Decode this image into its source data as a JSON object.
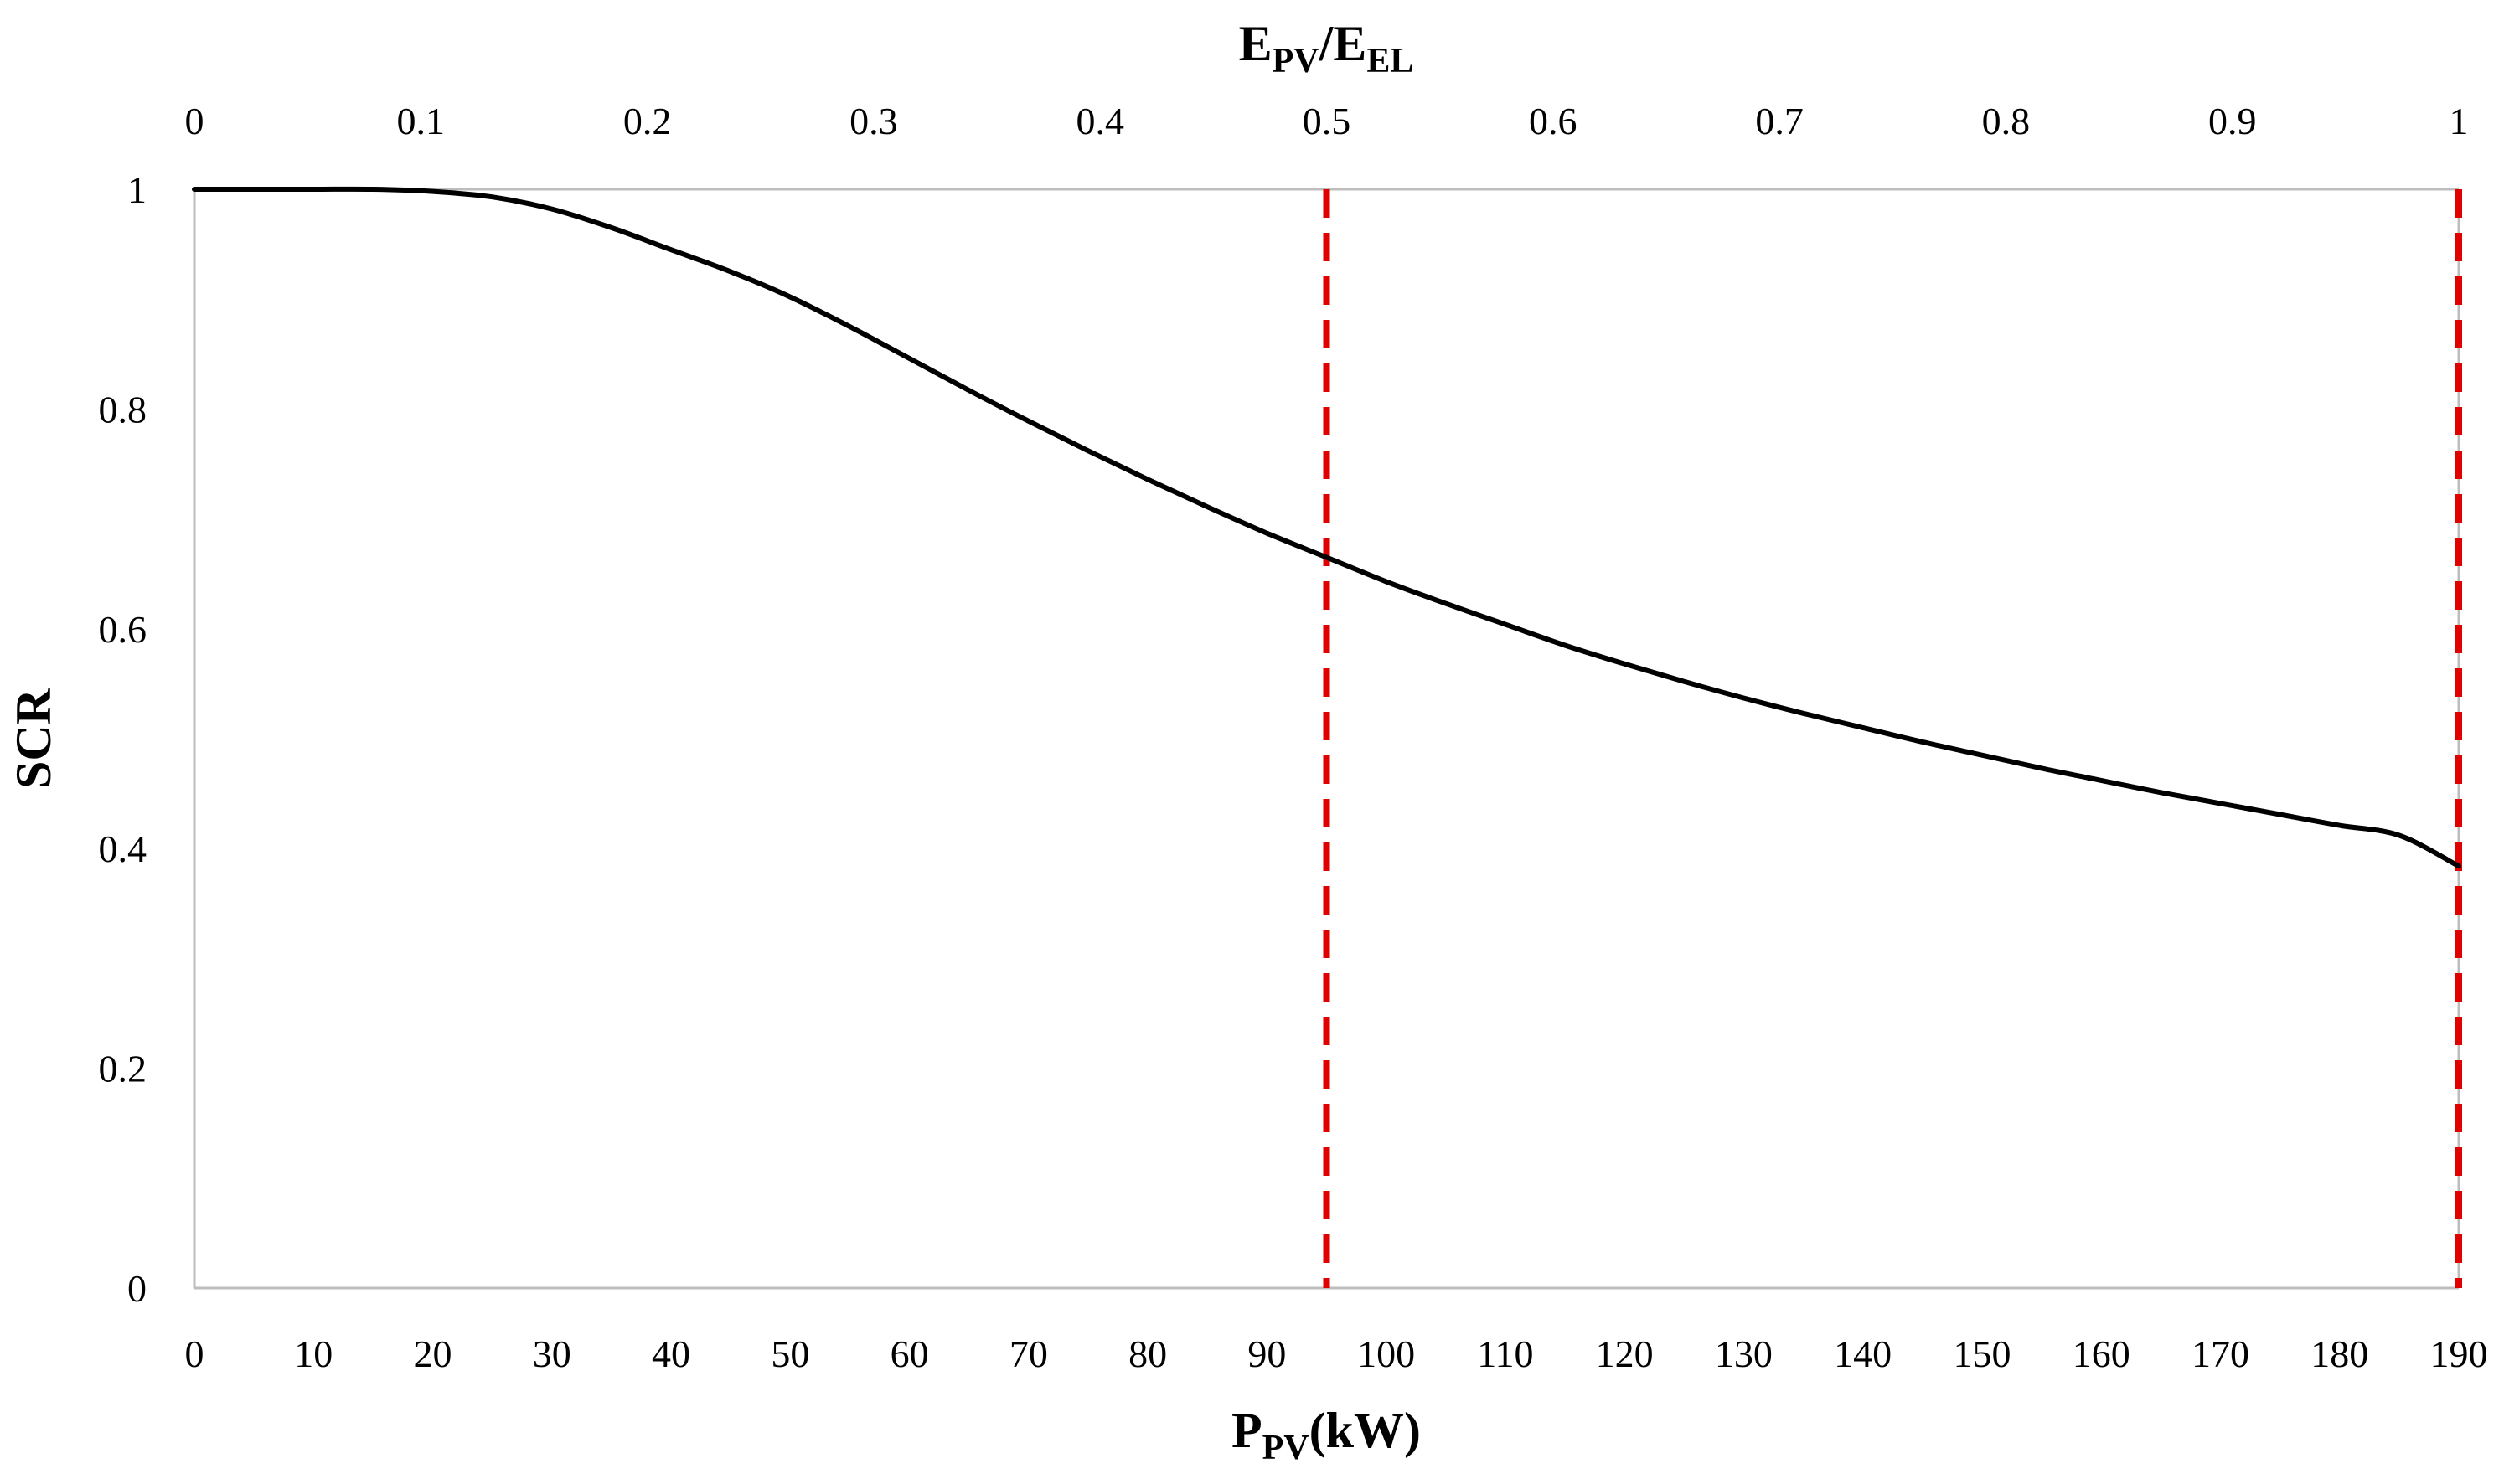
{
  "chart_data": {
    "type": "line",
    "y_axis": {
      "label": "SCR",
      "lim": [
        0,
        1
      ],
      "ticks": [
        0,
        0.2,
        0.4,
        0.6,
        0.8,
        1
      ],
      "tick_labels": [
        "0",
        "0.2",
        "0.4",
        "0.6",
        "0.8",
        "1"
      ]
    },
    "x_axis_bottom": {
      "label_main": "P",
      "label_sub": "PV",
      "label_tail": "(kW)",
      "lim": [
        0,
        190
      ],
      "ticks": [
        0,
        10,
        20,
        30,
        40,
        50,
        60,
        70,
        80,
        90,
        100,
        110,
        120,
        130,
        140,
        150,
        160,
        170,
        180,
        190
      ],
      "tick_labels": [
        "0",
        "10",
        "20",
        "30",
        "40",
        "50",
        "60",
        "70",
        "80",
        "90",
        "100",
        "110",
        "120",
        "130",
        "140",
        "150",
        "160",
        "170",
        "180",
        "190"
      ]
    },
    "x_axis_top": {
      "label_main_1": "E",
      "label_sub_1": "PV",
      "label_sep": "/E",
      "label_sub_2": "EL",
      "lim": [
        0,
        1
      ],
      "ticks": [
        0,
        0.1,
        0.2,
        0.3,
        0.4,
        0.5,
        0.6,
        0.7,
        0.8,
        0.9,
        1
      ],
      "tick_labels": [
        "0",
        "0.1",
        "0.2",
        "0.3",
        "0.4",
        "0.5",
        "0.6",
        "0.7",
        "0.8",
        "0.9",
        "1"
      ]
    },
    "grid": false,
    "colors": {
      "curve": "#000000",
      "reference": "#e00000",
      "axis": "#bdbdbd"
    },
    "series": [
      {
        "name": "SCR",
        "x": [
          0,
          5,
          10,
          15,
          20,
          25,
          30,
          35,
          40,
          45,
          50,
          55,
          60,
          65,
          70,
          75,
          80,
          85,
          90,
          95,
          100,
          105,
          110,
          115,
          120,
          125,
          130,
          135,
          140,
          145,
          150,
          155,
          160,
          165,
          170,
          175,
          180,
          185,
          190
        ],
        "y": [
          1,
          1,
          1,
          1,
          0.998,
          0.993,
          0.982,
          0.965,
          0.945,
          0.925,
          0.902,
          0.875,
          0.846,
          0.817,
          0.789,
          0.762,
          0.736,
          0.711,
          0.687,
          0.665,
          0.643,
          0.623,
          0.604,
          0.585,
          0.568,
          0.552,
          0.537,
          0.523,
          0.51,
          0.497,
          0.485,
          0.473,
          0.462,
          0.451,
          0.441,
          0.431,
          0.421,
          0.412,
          0.384
        ]
      }
    ],
    "reference_lines": [
      {
        "name": "ref-95kW",
        "x": 95
      },
      {
        "name": "ref-190kW",
        "x": 190
      }
    ]
  }
}
